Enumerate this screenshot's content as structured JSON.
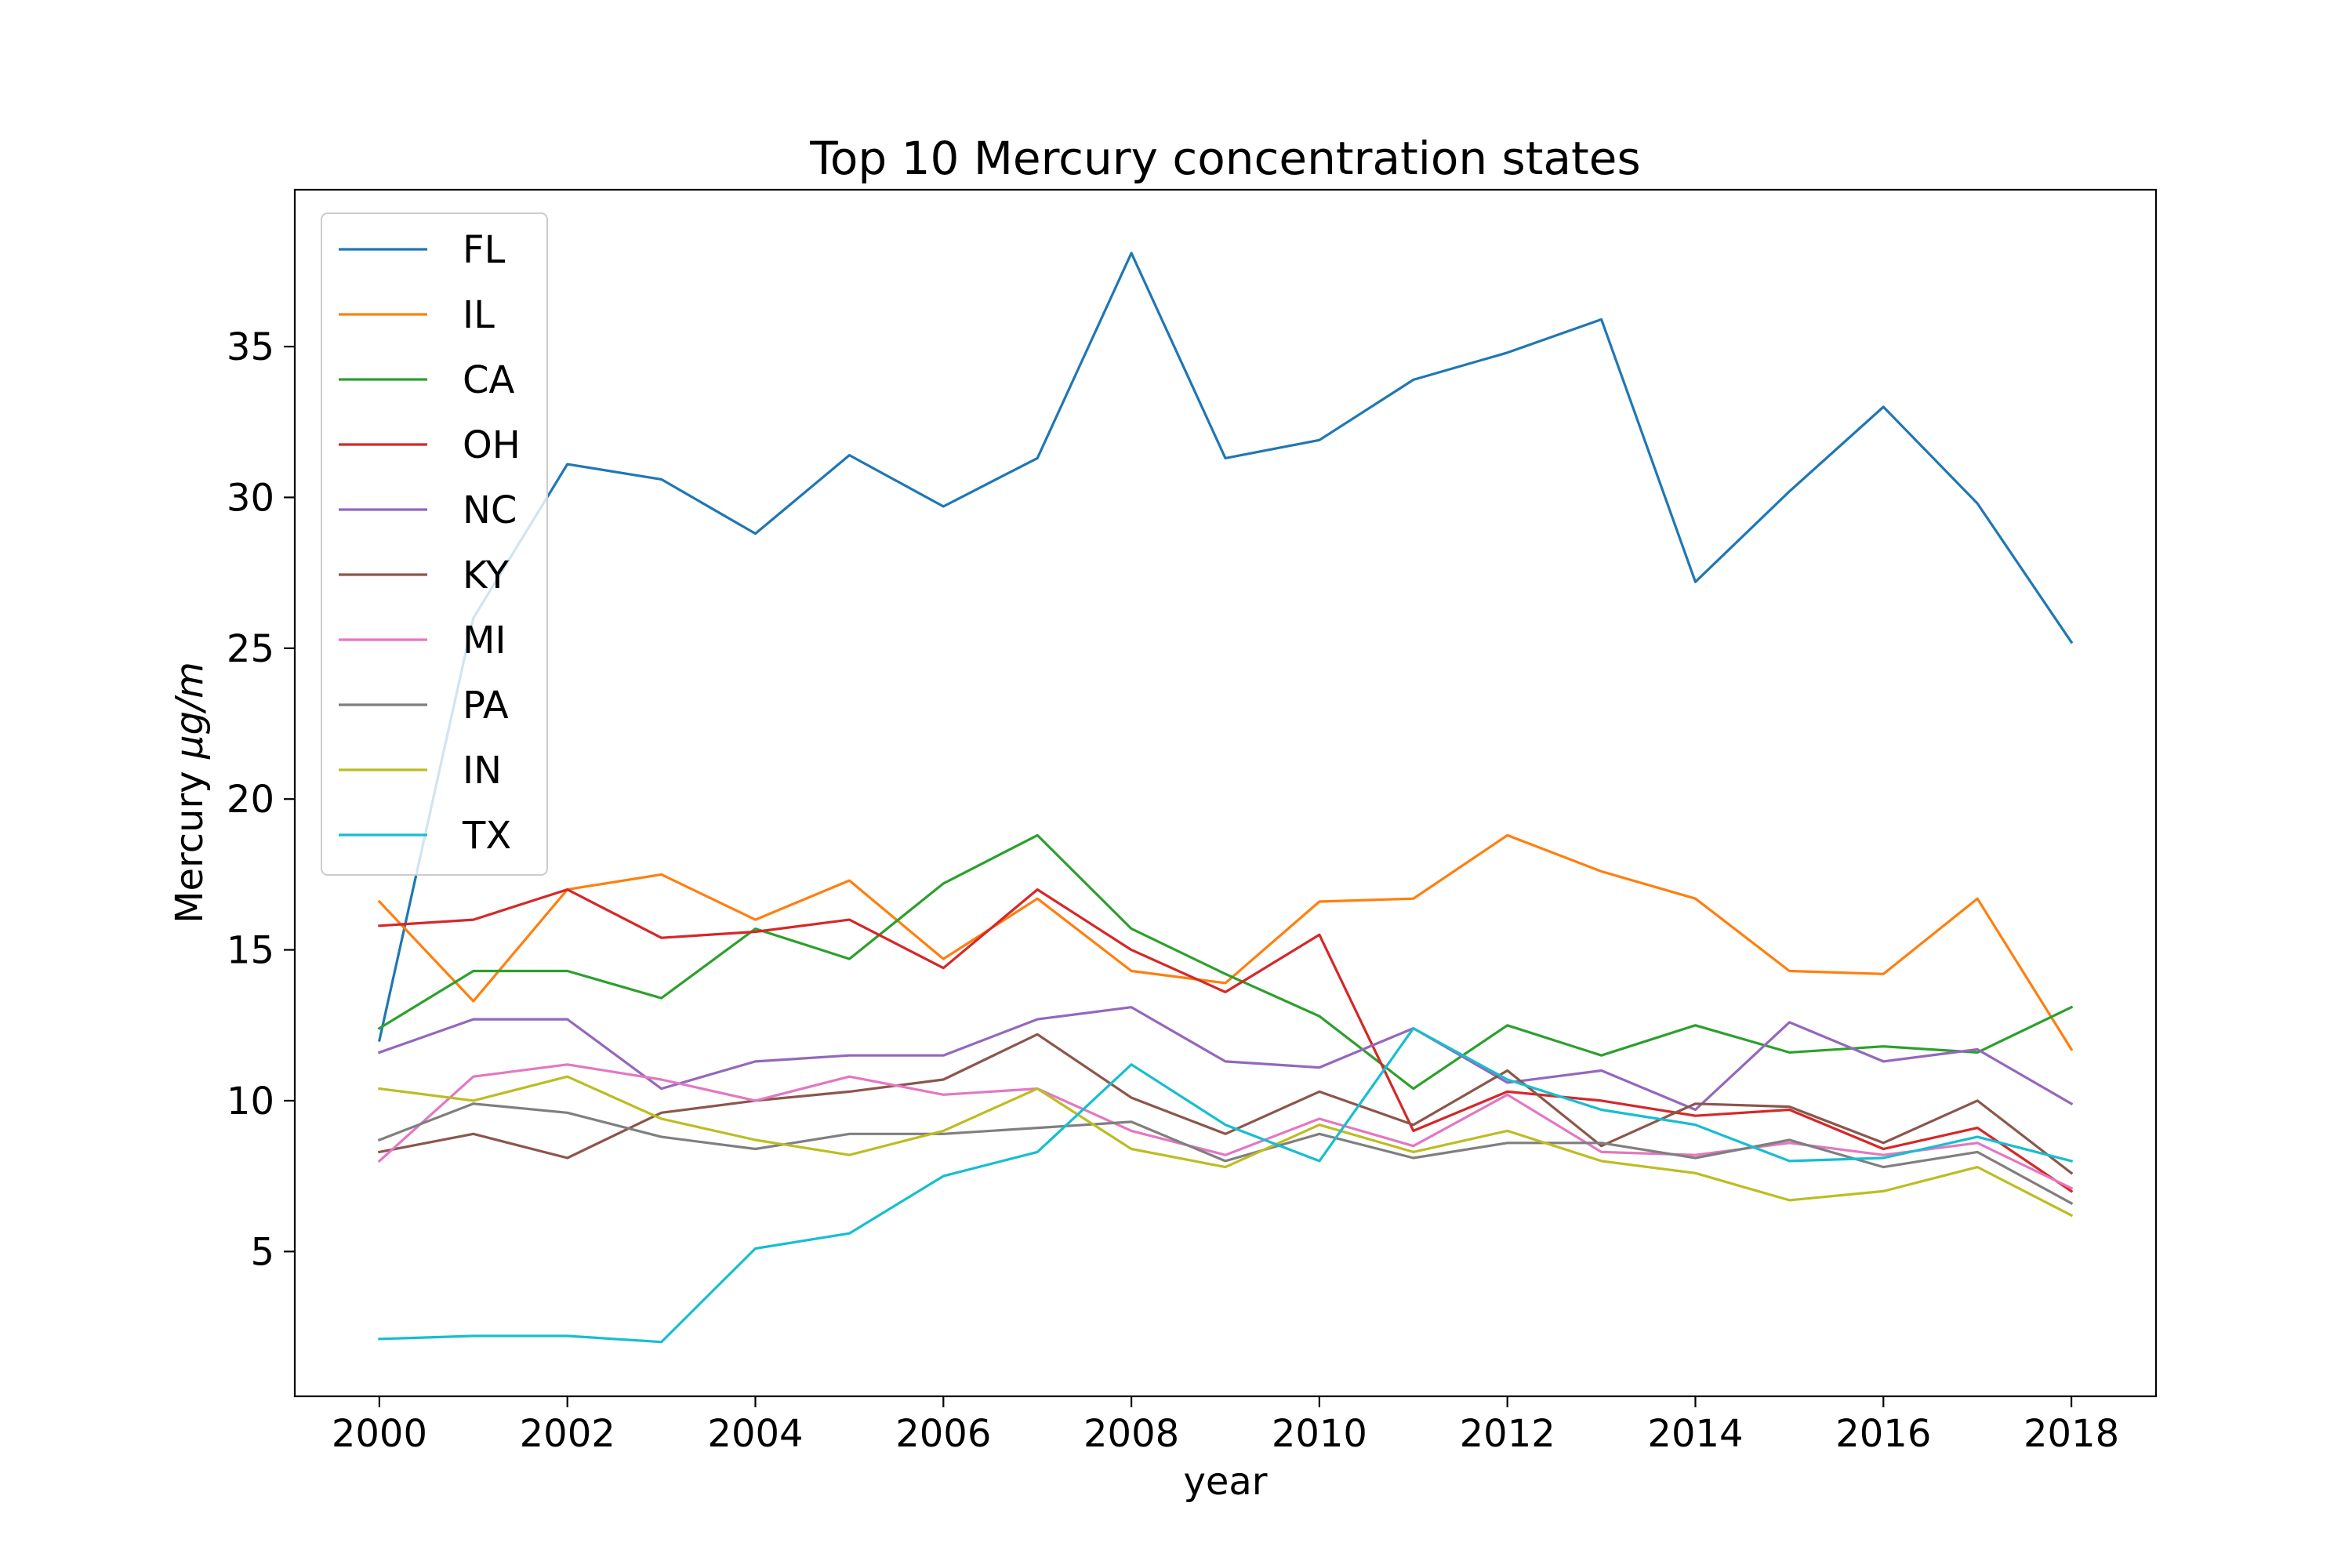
{
  "chart_data": {
    "type": "line",
    "title": "Top 10 Mercury concentration states",
    "xlabel": "year",
    "ylabel_prefix": "Mercury ",
    "ylabel_unit": "μg/m",
    "x": [
      2000,
      2001,
      2002,
      2003,
      2004,
      2005,
      2006,
      2007,
      2008,
      2009,
      2010,
      2011,
      2012,
      2013,
      2014,
      2015,
      2016,
      2017,
      2018
    ],
    "xlim": [
      1999.1,
      2018.9
    ],
    "ylim": [
      0.2,
      40.2
    ],
    "xticks": [
      2000,
      2002,
      2004,
      2006,
      2008,
      2010,
      2012,
      2014,
      2016,
      2018
    ],
    "yticks": [
      5,
      10,
      15,
      20,
      25,
      30,
      35
    ],
    "grid": false,
    "legend_position": "top-left",
    "series": [
      {
        "name": "FL",
        "color": "#1f77b4",
        "values": [
          12.0,
          26.0,
          31.1,
          30.6,
          28.8,
          31.4,
          29.7,
          31.3,
          38.1,
          31.3,
          31.9,
          33.9,
          34.8,
          35.9,
          27.2,
          30.2,
          33.0,
          29.8,
          25.2
        ]
      },
      {
        "name": "IL",
        "color": "#ff7f0e",
        "values": [
          16.6,
          13.3,
          17.0,
          17.5,
          16.0,
          17.3,
          14.7,
          16.7,
          14.3,
          13.9,
          16.6,
          16.7,
          18.8,
          17.6,
          16.7,
          14.3,
          14.2,
          16.7,
          11.7
        ]
      },
      {
        "name": "CA",
        "color": "#2ca02c",
        "values": [
          12.4,
          14.3,
          14.3,
          13.4,
          15.7,
          14.7,
          17.2,
          18.8,
          15.7,
          14.2,
          12.8,
          10.4,
          12.5,
          11.5,
          12.5,
          11.6,
          11.8,
          11.6,
          13.1
        ]
      },
      {
        "name": "OH",
        "color": "#d62728",
        "values": [
          15.8,
          16.0,
          17.0,
          15.4,
          15.6,
          16.0,
          14.4,
          17.0,
          15.0,
          13.6,
          15.5,
          9.0,
          10.3,
          10.0,
          9.5,
          9.7,
          8.4,
          9.1,
          7.0
        ]
      },
      {
        "name": "NC",
        "color": "#9467bd",
        "values": [
          11.6,
          12.7,
          12.7,
          10.4,
          11.3,
          11.5,
          11.5,
          12.7,
          13.1,
          11.3,
          11.1,
          12.4,
          10.6,
          11.0,
          9.7,
          12.6,
          11.3,
          11.7,
          9.9
        ]
      },
      {
        "name": "KY",
        "color": "#8c564b",
        "values": [
          8.3,
          8.9,
          8.1,
          9.6,
          10.0,
          10.3,
          10.7,
          12.2,
          10.1,
          8.9,
          10.3,
          9.2,
          11.0,
          8.5,
          9.9,
          9.8,
          8.6,
          10.0,
          7.6
        ]
      },
      {
        "name": "MI",
        "color": "#e377c2",
        "values": [
          8.0,
          10.8,
          11.2,
          10.7,
          10.0,
          10.8,
          10.2,
          10.4,
          9.0,
          8.2,
          9.4,
          8.5,
          10.2,
          8.3,
          8.2,
          8.6,
          8.2,
          8.6,
          7.1
        ]
      },
      {
        "name": "PA",
        "color": "#7f7f7f",
        "values": [
          8.7,
          9.9,
          9.6,
          8.8,
          8.4,
          8.9,
          8.9,
          9.1,
          9.3,
          8.0,
          8.9,
          8.1,
          8.6,
          8.6,
          8.1,
          8.7,
          7.8,
          8.3,
          6.6
        ]
      },
      {
        "name": "IN",
        "color": "#bcbd22",
        "values": [
          10.4,
          10.0,
          10.8,
          9.4,
          8.7,
          8.2,
          9.0,
          10.4,
          8.4,
          7.8,
          9.2,
          8.3,
          9.0,
          8.0,
          7.6,
          6.7,
          7.0,
          7.8,
          6.2
        ]
      },
      {
        "name": "TX",
        "color": "#17becf",
        "values": [
          2.1,
          2.2,
          2.2,
          2.0,
          5.1,
          5.6,
          7.5,
          8.3,
          11.2,
          9.2,
          8.0,
          12.4,
          10.7,
          9.7,
          9.2,
          8.0,
          8.1,
          8.8,
          8.0
        ]
      }
    ]
  }
}
